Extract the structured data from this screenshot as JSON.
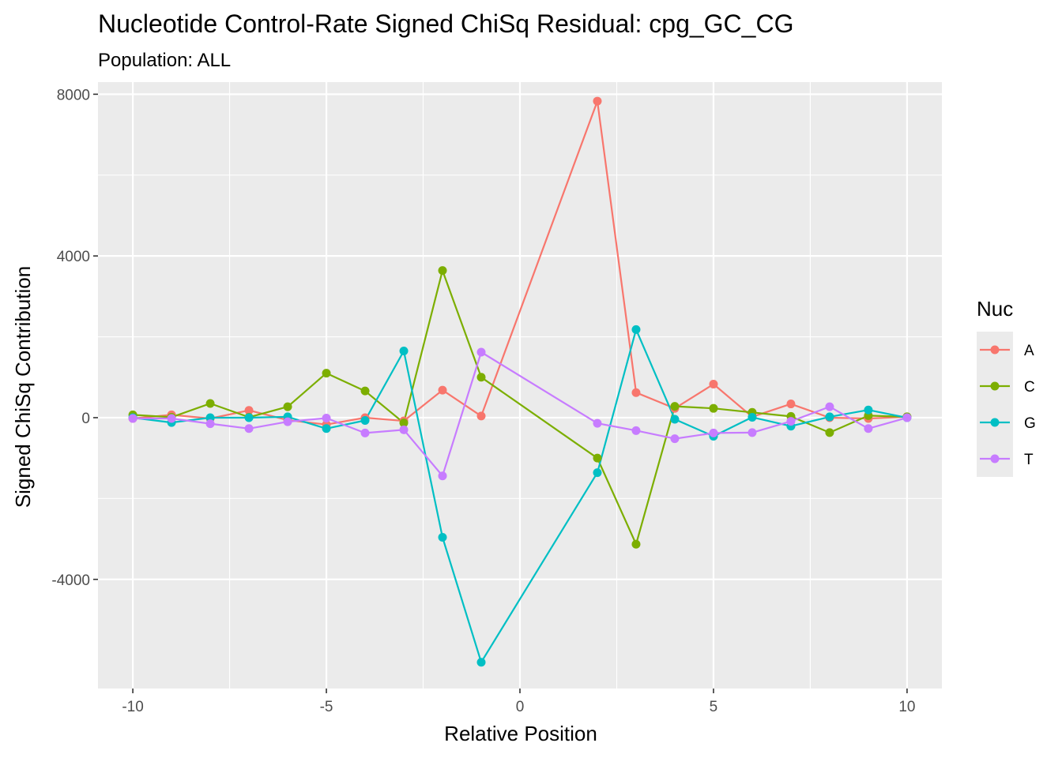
{
  "chart_data": {
    "type": "line",
    "title": "Nucleotide Control-Rate Signed ChiSq Residual: cpg_GC_CG",
    "subtitle": "Population: ALL",
    "xlabel": "Relative Position",
    "ylabel": "Signed ChiSq Contribution",
    "xlim": [
      -10.9,
      10.9
    ],
    "ylim": [
      -6700,
      8300
    ],
    "x_ticks": [
      -10,
      -5,
      0,
      5,
      10
    ],
    "x_tick_labels": [
      "-10",
      "-5",
      "0",
      "5",
      "10"
    ],
    "y_ticks": [
      -4000,
      0,
      4000,
      8000
    ],
    "y_tick_labels": [
      "-4000",
      "0",
      "4000",
      "8000"
    ],
    "grid": true,
    "legend": {
      "title": "Nuc",
      "position": "right"
    },
    "series": [
      {
        "name": "A",
        "color": "#F8766D",
        "x": [
          -10,
          -9,
          -8,
          -7,
          -6,
          -5,
          -4,
          -3,
          -2,
          -1,
          2,
          3,
          4,
          5,
          6,
          7,
          8,
          9,
          10
        ],
        "values": [
          -20,
          70,
          -20,
          180,
          -60,
          -170,
          0,
          -80,
          680,
          40,
          7830,
          620,
          230,
          830,
          20,
          340,
          0,
          -20,
          20
        ]
      },
      {
        "name": "C",
        "color": "#7CAE00",
        "x": [
          -10,
          -9,
          -8,
          -7,
          -6,
          -5,
          -4,
          -3,
          -2,
          -1,
          2,
          3,
          4,
          5,
          6,
          7,
          8,
          9,
          10
        ],
        "values": [
          70,
          10,
          350,
          10,
          270,
          1100,
          660,
          -130,
          3640,
          1000,
          -1000,
          -3130,
          280,
          230,
          130,
          30,
          -370,
          50,
          20
        ]
      },
      {
        "name": "G",
        "color": "#00BFC4",
        "x": [
          -10,
          -9,
          -8,
          -7,
          -6,
          -5,
          -4,
          -3,
          -2,
          -1,
          2,
          3,
          4,
          5,
          6,
          7,
          8,
          9,
          10
        ],
        "values": [
          0,
          -120,
          0,
          0,
          20,
          -270,
          -70,
          1650,
          -2960,
          -6050,
          -1360,
          2180,
          -40,
          -460,
          10,
          -210,
          20,
          190,
          0
        ]
      },
      {
        "name": "T",
        "color": "#C77CFF",
        "x": [
          -10,
          -9,
          -8,
          -7,
          -6,
          -5,
          -4,
          -3,
          -2,
          -1,
          2,
          3,
          4,
          5,
          6,
          7,
          8,
          9,
          10
        ],
        "values": [
          -20,
          -20,
          -150,
          -270,
          -100,
          -10,
          -380,
          -300,
          -1440,
          1620,
          -140,
          -320,
          -520,
          -380,
          -370,
          -90,
          270,
          -270,
          0
        ]
      }
    ]
  }
}
